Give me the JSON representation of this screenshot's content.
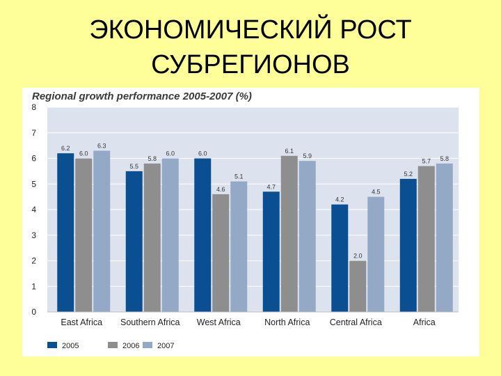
{
  "slide": {
    "title_line1": "ЭКОНОМИЧЕСКИЙ РОСТ",
    "title_line2": "СУБРЕГИОНОВ"
  },
  "chart_data": {
    "type": "bar",
    "title": "Regional growth performance 2005-2007 (%)",
    "categories": [
      "East Africa",
      "Southern Africa",
      "West Africa",
      "North Africa",
      "Central Africa",
      "Africa"
    ],
    "series": [
      {
        "name": "2005",
        "color": "#0B4F93",
        "values": [
          6.2,
          5.5,
          6.0,
          4.7,
          4.2,
          5.2
        ]
      },
      {
        "name": "2006",
        "color": "#8E8E8E",
        "values": [
          6.0,
          5.8,
          4.6,
          6.1,
          2.0,
          5.7
        ]
      },
      {
        "name": "2007",
        "color": "#93A9C6",
        "values": [
          6.3,
          6.0,
          5.1,
          5.9,
          4.5,
          5.8
        ]
      }
    ],
    "ylim": [
      0,
      8
    ],
    "yticks": [
      "0",
      "1",
      "2",
      "3",
      "4",
      "5",
      "6",
      "7",
      "8"
    ],
    "grid": true,
    "plot_background": "#DCE3EE",
    "legend_position": "bottom-left"
  }
}
